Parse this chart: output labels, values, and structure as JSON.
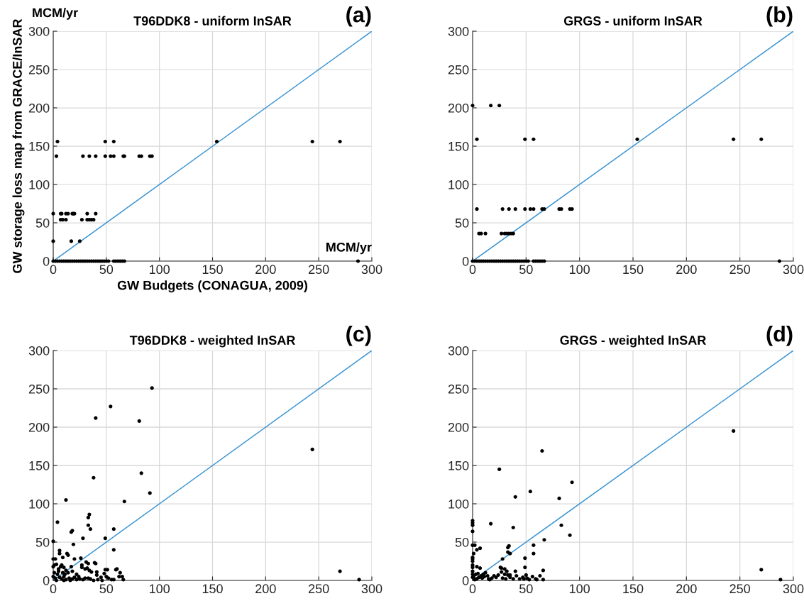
{
  "chart_data": [
    {
      "type": "scatter",
      "title": "T96DDK8 - uniform InSAR",
      "xlabel": "GW Budgets (CONAGUA, 2009)",
      "ylabel": "GW storage loss map from GRACE/InSAR",
      "annotations": [
        "(a)",
        "MCM/yr",
        "MCM/yr"
      ],
      "xlim": [
        0,
        300
      ],
      "ylim": [
        0,
        300
      ],
      "xticks": [
        0,
        50,
        100,
        150,
        200,
        250,
        300
      ],
      "yticks": [
        0,
        50,
        100,
        150,
        200,
        250,
        300
      ],
      "grid": true,
      "series": [
        {
          "color": "#000000",
          "marker": "circle",
          "x": [
            4,
            49,
            57,
            154,
            244,
            270,
            3,
            28,
            34,
            40,
            49,
            54,
            57,
            66,
            67,
            81,
            83,
            91,
            93,
            0,
            7,
            8,
            12,
            14,
            18,
            19,
            20,
            32,
            40,
            7,
            9,
            12,
            27,
            32,
            34,
            36,
            38,
            0,
            17,
            25,
            0,
            2,
            4,
            6,
            8,
            10,
            12,
            14,
            16,
            18,
            20,
            22,
            24,
            26,
            28,
            30,
            32,
            34,
            36,
            38,
            40,
            42,
            44,
            46,
            48,
            50,
            52,
            57,
            59,
            61,
            63,
            65,
            67,
            287
          ],
          "values": [
            156,
            156,
            156,
            156,
            156,
            156,
            137,
            137,
            137,
            137,
            137,
            137,
            137,
            137,
            137,
            137,
            137,
            137,
            137,
            62,
            62,
            62,
            62,
            62,
            62,
            62,
            62,
            62,
            62,
            54,
            54,
            54,
            54,
            54,
            54,
            54,
            54,
            26,
            26,
            26,
            0,
            0,
            0,
            0,
            0,
            0,
            0,
            0,
            0,
            0,
            0,
            0,
            0,
            0,
            0,
            0,
            0,
            0,
            0,
            0,
            0,
            0,
            0,
            0,
            0,
            0,
            0,
            0,
            0,
            0,
            0,
            0,
            0,
            0
          ]
        },
        {
          "type": "line",
          "color": "#3c95d3",
          "marker": "none",
          "line_style": "solid",
          "x": [
            0,
            300
          ],
          "values": [
            0,
            300
          ]
        }
      ]
    },
    {
      "type": "scatter",
      "title": "GRGS - uniform InSAR",
      "annotations": [
        "(b)"
      ],
      "xlim": [
        0,
        300
      ],
      "ylim": [
        0,
        300
      ],
      "xticks": [
        0,
        50,
        100,
        150,
        200,
        250,
        300
      ],
      "yticks": [
        0,
        50,
        100,
        150,
        200,
        250,
        300
      ],
      "grid": true,
      "series": [
        {
          "color": "#000000",
          "marker": "circle",
          "x": [
            0,
            17,
            25,
            4,
            49,
            57,
            154,
            244,
            270,
            4,
            28,
            34,
            40,
            49,
            54,
            57,
            65,
            67,
            81,
            83,
            91,
            93,
            6,
            8,
            12,
            27,
            30,
            32,
            34,
            36,
            38,
            0,
            2,
            4,
            6,
            8,
            10,
            12,
            14,
            16,
            18,
            20,
            22,
            24,
            26,
            28,
            30,
            32,
            34,
            36,
            38,
            40,
            42,
            44,
            46,
            48,
            50,
            52,
            57,
            59,
            61,
            63,
            65,
            67,
            287
          ],
          "values": [
            203,
            203,
            203,
            159,
            159,
            159,
            159,
            159,
            159,
            68,
            68,
            68,
            68,
            68,
            68,
            68,
            68,
            68,
            68,
            68,
            68,
            68,
            36,
            36,
            36,
            36,
            36,
            36,
            36,
            36,
            36,
            0,
            0,
            0,
            0,
            0,
            0,
            0,
            0,
            0,
            0,
            0,
            0,
            0,
            0,
            0,
            0,
            0,
            0,
            0,
            0,
            0,
            0,
            0,
            0,
            0,
            0,
            0,
            0,
            0,
            0,
            0,
            0,
            0,
            0
          ]
        },
        {
          "type": "line",
          "color": "#3c95d3",
          "marker": "none",
          "line_style": "solid",
          "x": [
            0,
            300
          ],
          "values": [
            0,
            300
          ]
        }
      ]
    },
    {
      "type": "scatter",
      "title": "T96DDK8 - weighted InSAR",
      "annotations": [
        "(c)"
      ],
      "xlim": [
        0,
        300
      ],
      "ylim": [
        0,
        300
      ],
      "xticks": [
        0,
        50,
        100,
        150,
        200,
        250,
        300
      ],
      "yticks": [
        0,
        50,
        100,
        150,
        200,
        250,
        300
      ],
      "grid": true,
      "series": [
        {
          "color": "#000000",
          "marker": "circle",
          "x": [
            93,
            54,
            40,
            81,
            244,
            83,
            38,
            91,
            12,
            67,
            33,
            34,
            33,
            35,
            57,
            4,
            17,
            18,
            28,
            49,
            0,
            19,
            57,
            270,
            288,
            6,
            6,
            9,
            13,
            14,
            20,
            26,
            31,
            33,
            39,
            40,
            0,
            2,
            1,
            3,
            0,
            5,
            8,
            10,
            12,
            14,
            17,
            18,
            22,
            24,
            27,
            27,
            30,
            32,
            34,
            36,
            41,
            41,
            45,
            48,
            49,
            51,
            52,
            55,
            57,
            59,
            60,
            62,
            63,
            65,
            66,
            0,
            1,
            2,
            4,
            6,
            8,
            10,
            12,
            15,
            18,
            20,
            22,
            25,
            28,
            30,
            33,
            35,
            38,
            42,
            46,
            50,
            16,
            3,
            10,
            5,
            7,
            9,
            11
          ],
          "values": [
            251,
            227,
            212,
            208,
            171,
            140,
            134,
            114,
            105,
            103,
            82,
            86,
            72,
            67,
            67,
            76,
            63,
            65,
            55,
            55,
            51,
            47,
            40,
            12,
            1,
            39,
            35,
            30,
            35,
            33,
            28,
            29,
            24,
            22,
            23,
            22,
            28,
            28,
            20,
            21,
            18,
            15,
            20,
            17,
            13,
            10,
            18,
            12,
            8,
            5,
            20,
            17,
            15,
            16,
            13,
            11,
            11,
            7,
            4,
            9,
            14,
            14,
            3,
            1,
            1,
            14,
            15,
            5,
            10,
            5,
            1,
            5,
            10,
            3,
            8,
            4,
            2,
            5,
            1,
            3,
            2,
            4,
            1,
            2,
            1,
            3,
            3,
            2,
            0,
            1,
            0,
            5,
            0,
            0,
            0,
            12,
            18,
            10,
            8
          ]
        },
        {
          "type": "line",
          "color": "#3c95d3",
          "marker": "none",
          "line_style": "solid",
          "x": [
            0,
            300
          ],
          "values": [
            0,
            300
          ]
        }
      ]
    },
    {
      "type": "scatter",
      "title": "GRGS - weighted InSAR",
      "annotations": [
        "(d)"
      ],
      "xlim": [
        0,
        300
      ],
      "ylim": [
        0,
        300
      ],
      "xticks": [
        0,
        50,
        100,
        150,
        200,
        250,
        300
      ],
      "yticks": [
        0,
        50,
        100,
        150,
        200,
        250,
        300
      ],
      "grid": true,
      "series": [
        {
          "color": "#000000",
          "marker": "circle",
          "x": [
            244,
            65,
            25,
            93,
            54,
            40,
            81,
            17,
            38,
            83,
            91,
            67,
            57,
            57,
            33,
            34,
            33,
            35,
            28,
            49,
            49,
            40,
            66,
            270,
            288,
            0,
            0,
            0,
            0,
            0,
            0,
            0,
            0,
            0,
            0,
            0,
            0,
            0,
            2,
            7,
            4,
            1,
            4,
            7,
            26,
            27,
            27,
            30,
            32,
            30,
            33,
            35,
            38,
            41,
            44,
            47,
            48,
            50,
            51,
            53,
            56,
            59,
            60,
            63,
            66,
            20,
            22,
            24,
            18,
            15,
            12,
            10,
            8,
            6,
            4,
            2,
            11,
            9,
            14,
            3,
            1,
            28,
            31,
            35,
            16,
            5
          ],
          "values": [
            195,
            169,
            145,
            128,
            116,
            109,
            107,
            74,
            69,
            72,
            59,
            53,
            46,
            35,
            43,
            45,
            37,
            35,
            28,
            29,
            17,
            12,
            13,
            14,
            1,
            78,
            75,
            72,
            64,
            46,
            30,
            28,
            25,
            20,
            17,
            12,
            8,
            4,
            46,
            42,
            40,
            35,
            18,
            16,
            17,
            16,
            11,
            15,
            12,
            8,
            7,
            4,
            2,
            6,
            2,
            4,
            2,
            7,
            3,
            1,
            5,
            2,
            1,
            6,
            1,
            6,
            4,
            7,
            3,
            2,
            10,
            8,
            6,
            4,
            2,
            1,
            5,
            3,
            6,
            8,
            5,
            3,
            2,
            7,
            1,
            9
          ]
        },
        {
          "type": "line",
          "color": "#3c95d3",
          "marker": "none",
          "line_style": "solid",
          "x": [
            0,
            300
          ],
          "values": [
            0,
            300
          ]
        }
      ]
    }
  ]
}
